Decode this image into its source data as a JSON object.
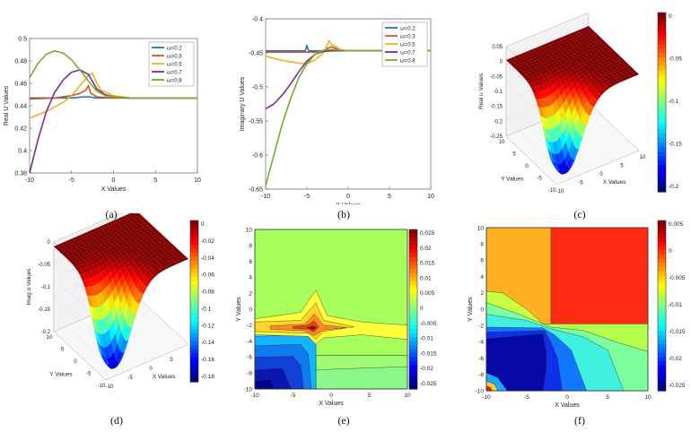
{
  "captions": [
    "(a)",
    "(b)",
    "(c)",
    "(d)",
    "(e)",
    "(f)"
  ],
  "chart_data": [
    {
      "id": "a",
      "type": "line",
      "xlabel": "X Values",
      "ylabel": "Real U Values",
      "xlim": [
        -10,
        10
      ],
      "ylim": [
        0.38,
        0.5
      ],
      "xticks": [
        -10,
        -5,
        0,
        5,
        10
      ],
      "yticks": [
        0.38,
        0.4,
        0.42,
        0.44,
        0.46,
        0.48,
        0.5
      ],
      "ytick_labels": [
        "0.38",
        "0.4",
        "0.42",
        "0.44",
        "0.46",
        "0.48",
        "0.5"
      ],
      "legend_position": "top-right",
      "series": [
        {
          "name": "ω=0.2",
          "color": "#1f77c4",
          "x": [
            -10,
            -7,
            -5,
            -3.5,
            -3,
            -2,
            0,
            5,
            10
          ],
          "y": [
            0.447,
            0.447,
            0.447,
            0.448,
            0.448,
            0.447,
            0.447,
            0.447,
            0.447
          ]
        },
        {
          "name": "ω=0.3",
          "color": "#d9541e",
          "x": [
            -10,
            -7,
            -5,
            -4,
            -3.3,
            -3,
            -2.7,
            -2,
            0,
            5,
            10
          ],
          "y": [
            0.446,
            0.447,
            0.449,
            0.451,
            0.454,
            0.458,
            0.451,
            0.448,
            0.447,
            0.447,
            0.447
          ]
        },
        {
          "name": "ω=0.5",
          "color": "#edb120",
          "x": [
            -10,
            -8,
            -6,
            -5,
            -4,
            -3,
            -2.5,
            -2,
            -1.5,
            0,
            2,
            5,
            10
          ],
          "y": [
            0.429,
            0.435,
            0.443,
            0.449,
            0.458,
            0.467,
            0.469,
            0.46,
            0.454,
            0.449,
            0.447,
            0.447,
            0.447
          ]
        },
        {
          "name": "ω=0.7",
          "color": "#7e2f8e",
          "x": [
            -10,
            -9,
            -8,
            -7,
            -6,
            -5,
            -4,
            -3,
            -2,
            -1,
            0,
            2,
            5,
            10
          ],
          "y": [
            0.38,
            0.41,
            0.435,
            0.452,
            0.463,
            0.47,
            0.472,
            0.468,
            0.455,
            0.45,
            0.448,
            0.447,
            0.447,
            0.447
          ]
        },
        {
          "name": "ω=0.8",
          "color": "#77ac30",
          "x": [
            -10,
            -9,
            -8,
            -7,
            -6,
            -5,
            -4,
            -3,
            -2,
            -1,
            0,
            2,
            5,
            10
          ],
          "y": [
            0.465,
            0.478,
            0.486,
            0.489,
            0.487,
            0.481,
            0.472,
            0.462,
            0.453,
            0.449,
            0.448,
            0.447,
            0.447,
            0.447
          ]
        }
      ]
    },
    {
      "id": "b",
      "type": "line",
      "xlabel": "X Values",
      "ylabel": "Imaginary U Values",
      "xlim": [
        -10,
        10
      ],
      "ylim": [
        -0.65,
        -0.4
      ],
      "xticks": [
        -10,
        -5,
        0,
        5,
        10
      ],
      "yticks": [
        -0.65,
        -0.6,
        -0.55,
        -0.5,
        -0.45,
        -0.4
      ],
      "ytick_labels": [
        "-0.65",
        "-0.6",
        "-0.55",
        "-0.5",
        "-0.45",
        "-0.4"
      ],
      "legend_position": "top-right",
      "series": [
        {
          "name": "ω=0.2",
          "color": "#1f77c4",
          "x": [
            -10,
            -6,
            -5.2,
            -5,
            -4.8,
            -3,
            0,
            5,
            10
          ],
          "y": [
            -0.447,
            -0.447,
            -0.447,
            -0.439,
            -0.447,
            -0.447,
            -0.447,
            -0.447,
            -0.447
          ]
        },
        {
          "name": "ω=0.3",
          "color": "#d9541e",
          "x": [
            -10,
            -6,
            -4,
            -3,
            -2.5,
            -2,
            -1,
            0,
            5,
            10
          ],
          "y": [
            -0.449,
            -0.449,
            -0.449,
            -0.448,
            -0.443,
            -0.441,
            -0.446,
            -0.447,
            -0.447,
            -0.447
          ]
        },
        {
          "name": "ω=0.5",
          "color": "#edb120",
          "x": [
            -10,
            -8,
            -6,
            -5,
            -4,
            -3,
            -2.3,
            -2,
            -1.6,
            -1,
            0,
            5,
            10
          ],
          "y": [
            -0.455,
            -0.461,
            -0.465,
            -0.466,
            -0.46,
            -0.45,
            -0.432,
            -0.438,
            -0.44,
            -0.445,
            -0.447,
            -0.447,
            -0.447
          ]
        },
        {
          "name": "ω=0.7",
          "color": "#7e2f8e",
          "x": [
            -10,
            -9,
            -8,
            -7,
            -6,
            -5,
            -4,
            -3,
            -2,
            0,
            5,
            10
          ],
          "y": [
            -0.532,
            -0.525,
            -0.512,
            -0.496,
            -0.478,
            -0.462,
            -0.452,
            -0.448,
            -0.447,
            -0.447,
            -0.447,
            -0.447
          ]
        },
        {
          "name": "ω=0.8",
          "color": "#77ac30",
          "x": [
            -10,
            -9,
            -8,
            -7,
            -6,
            -5,
            -4,
            -3,
            -2,
            -1,
            0,
            5,
            10
          ],
          "y": [
            -0.645,
            -0.6,
            -0.555,
            -0.518,
            -0.487,
            -0.466,
            -0.452,
            -0.446,
            -0.445,
            -0.446,
            -0.447,
            -0.447,
            -0.447
          ]
        }
      ]
    },
    {
      "id": "c",
      "type": "surface",
      "xlabel": "X Values",
      "ylabel": "Y Values",
      "zlabel": "Real u Values",
      "zticks": [
        "0.05",
        "0",
        "-0.05",
        "-0.1",
        "-0.15",
        "-0.2",
        "-0.25"
      ],
      "xticks": [
        "-10",
        "-5",
        "0",
        "5",
        "10"
      ],
      "yticks": [
        "10",
        "5",
        "0",
        "-5",
        "-10"
      ],
      "colorbar_ticks": [
        "0",
        "-0.05",
        "-0.1",
        "-0.15",
        "-0.2"
      ],
      "colormap": "jet"
    },
    {
      "id": "d",
      "type": "surface",
      "xlabel": "X Values",
      "ylabel": "Y Values",
      "zlabel": "Imag u Values",
      "zticks": [
        "0",
        "-0.05",
        "-0.1",
        "-0.15",
        "-0.2"
      ],
      "xticks": [
        "-10",
        "-5",
        "0",
        "5",
        "10"
      ],
      "yticks": [
        "10",
        "5",
        "0",
        "-5",
        "-10"
      ],
      "colorbar_ticks": [
        "0",
        "-0.02",
        "-0.04",
        "-0.06",
        "-0.08",
        "-0.1",
        "-0.12",
        "-0.14",
        "-0.16",
        "-0.18"
      ],
      "colormap": "jet"
    },
    {
      "id": "e",
      "type": "contourf",
      "xlabel": "X Values",
      "ylabel": "Y Values",
      "xlim": [
        -10,
        10
      ],
      "ylim": [
        -10,
        10
      ],
      "xticks": [
        -10,
        -5,
        0,
        5,
        10
      ],
      "yticks": [
        -10,
        -8,
        -6,
        -4,
        -2,
        0,
        2,
        4,
        6,
        8,
        10
      ],
      "colorbar_ticks": [
        "0.025",
        "0.02",
        "0.015",
        "0.01",
        "0.005",
        "0",
        "-0.005",
        "-0.01",
        "-0.015",
        "-0.02",
        "-0.025"
      ],
      "colormap": "jet"
    },
    {
      "id": "f",
      "type": "contourf",
      "xlabel": "X Values",
      "ylabel": "Y Values",
      "xlim": [
        -10,
        10
      ],
      "ylim": [
        -10,
        10
      ],
      "xticks": [
        -10,
        -5,
        0,
        5,
        10
      ],
      "yticks": [
        -10,
        -8,
        -6,
        -4,
        -2,
        0,
        2,
        4,
        6,
        8,
        10
      ],
      "colorbar_ticks": [
        "0.005",
        "0",
        "-0.005",
        "-0.01",
        "-0.015",
        "-0.02",
        "-0.025"
      ],
      "colormap": "jet"
    }
  ]
}
